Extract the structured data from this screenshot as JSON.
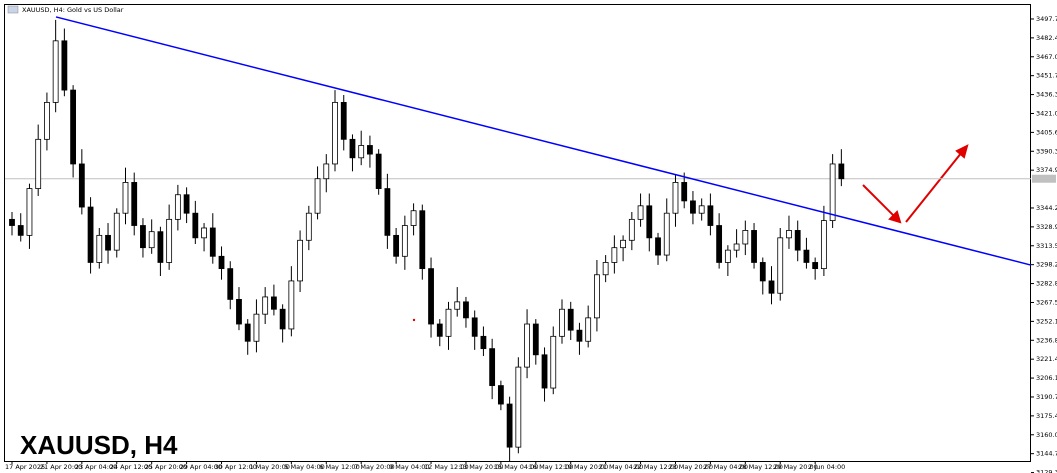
{
  "chart_data": {
    "type": "candlestick",
    "title": "XAUUSD, H4: Gold vs US Dollar",
    "watermark": "XAUUSD, H4",
    "categories": [
      "17 Apr 2025",
      null,
      null,
      null,
      "21 Apr 20:00",
      null,
      null,
      null,
      "23 Apr 04:00",
      null,
      null,
      null,
      "24 Apr 12:00",
      null,
      null,
      null,
      "25 Apr 20:00",
      null,
      null,
      null,
      "29 Apr 04:00",
      null,
      null,
      null,
      "30 Apr 12:00",
      null,
      null,
      null,
      "1 May 20:00",
      null,
      null,
      null,
      "5 May 04:00",
      null,
      null,
      null,
      "6 May 12:00",
      null,
      null,
      null,
      "7 May 20:00",
      null,
      null,
      null,
      "9 May 04:00",
      null,
      null,
      null,
      "12 May 12:00",
      null,
      null,
      null,
      "13 May 20:00",
      null,
      null,
      null,
      "15 May 04:00",
      null,
      null,
      null,
      "16 May 12:00",
      null,
      null,
      null,
      "19 May 20:00",
      null,
      null,
      null,
      "21 May 04:00",
      null,
      null,
      null,
      "22 May 12:00",
      null,
      null,
      null,
      "23 May 20:00",
      null,
      null,
      null,
      "27 May 04:00",
      null,
      null,
      null,
      "28 May 12:00",
      null,
      null,
      null,
      "29 May 20:00",
      null,
      null,
      null,
      "2 Jun 04:00",
      null,
      null,
      null
    ],
    "ohlc": [
      [
        3335,
        3341,
        3322,
        3330
      ],
      [
        3330,
        3340,
        3317,
        3322
      ],
      [
        3322,
        3364,
        3311,
        3360
      ],
      [
        3360,
        3412,
        3354,
        3400
      ],
      [
        3400,
        3438,
        3391,
        3430
      ],
      [
        3430,
        3497,
        3422,
        3480
      ],
      [
        3480,
        3490,
        3435,
        3440
      ],
      [
        3440,
        3444,
        3369,
        3380
      ],
      [
        3380,
        3392,
        3339,
        3345
      ],
      [
        3345,
        3353,
        3291,
        3300
      ],
      [
        3300,
        3328,
        3295,
        3322
      ],
      [
        3322,
        3332,
        3299,
        3310
      ],
      [
        3310,
        3344,
        3304,
        3340
      ],
      [
        3340,
        3377,
        3331,
        3365
      ],
      [
        3365,
        3373,
        3322,
        3330
      ],
      [
        3330,
        3336,
        3304,
        3312
      ],
      [
        3312,
        3335,
        3307,
        3325
      ],
      [
        3325,
        3329,
        3289,
        3300
      ],
      [
        3300,
        3347,
        3294,
        3335
      ],
      [
        3335,
        3363,
        3326,
        3355
      ],
      [
        3355,
        3361,
        3332,
        3340
      ],
      [
        3340,
        3350,
        3315,
        3320
      ],
      [
        3320,
        3332,
        3309,
        3328
      ],
      [
        3328,
        3340,
        3299,
        3305
      ],
      [
        3305,
        3313,
        3286,
        3295
      ],
      [
        3295,
        3301,
        3262,
        3270
      ],
      [
        3270,
        3280,
        3245,
        3250
      ],
      [
        3250,
        3254,
        3225,
        3236
      ],
      [
        3236,
        3270,
        3227,
        3258
      ],
      [
        3258,
        3280,
        3250,
        3272
      ],
      [
        3272,
        3282,
        3257,
        3262
      ],
      [
        3262,
        3266,
        3235,
        3246
      ],
      [
        3246,
        3297,
        3240,
        3285
      ],
      [
        3285,
        3326,
        3276,
        3318
      ],
      [
        3318,
        3346,
        3310,
        3340
      ],
      [
        3340,
        3378,
        3335,
        3368
      ],
      [
        3368,
        3388,
        3357,
        3380
      ],
      [
        3380,
        3440,
        3374,
        3430
      ],
      [
        3430,
        3436,
        3391,
        3400
      ],
      [
        3400,
        3404,
        3374,
        3385
      ],
      [
        3385,
        3407,
        3379,
        3395
      ],
      [
        3395,
        3403,
        3377,
        3388
      ],
      [
        3388,
        3392,
        3355,
        3360
      ],
      [
        3360,
        3372,
        3311,
        3322
      ],
      [
        3322,
        3328,
        3299,
        3305
      ],
      [
        3305,
        3338,
        3294,
        3330
      ],
      [
        3330,
        3348,
        3322,
        3342
      ],
      [
        3342,
        3347,
        3286,
        3295
      ],
      [
        3295,
        3304,
        3239,
        3250
      ],
      [
        3250,
        3254,
        3232,
        3240
      ],
      [
        3240,
        3268,
        3229,
        3262
      ],
      [
        3262,
        3280,
        3256,
        3268
      ],
      [
        3268,
        3272,
        3247,
        3255
      ],
      [
        3255,
        3261,
        3229,
        3240
      ],
      [
        3240,
        3248,
        3224,
        3230
      ],
      [
        3230,
        3238,
        3189,
        3200
      ],
      [
        3200,
        3204,
        3180,
        3185
      ],
      [
        3185,
        3191,
        3135,
        3150
      ],
      [
        3150,
        3223,
        3145,
        3215
      ],
      [
        3215,
        3262,
        3206,
        3250
      ],
      [
        3250,
        3254,
        3217,
        3225
      ],
      [
        3225,
        3231,
        3187,
        3198
      ],
      [
        3198,
        3248,
        3193,
        3240
      ],
      [
        3240,
        3270,
        3234,
        3262
      ],
      [
        3262,
        3268,
        3237,
        3245
      ],
      [
        3245,
        3251,
        3225,
        3236
      ],
      [
        3236,
        3265,
        3231,
        3255
      ],
      [
        3255,
        3302,
        3244,
        3290
      ],
      [
        3290,
        3306,
        3284,
        3300
      ],
      [
        3300,
        3322,
        3291,
        3312
      ],
      [
        3312,
        3322,
        3301,
        3318
      ],
      [
        3318,
        3341,
        3310,
        3335
      ],
      [
        3335,
        3356,
        3329,
        3346
      ],
      [
        3346,
        3356,
        3309,
        3320
      ],
      [
        3320,
        3324,
        3298,
        3306
      ],
      [
        3306,
        3352,
        3301,
        3340
      ],
      [
        3340,
        3371,
        3329,
        3365
      ],
      [
        3365,
        3373,
        3344,
        3350
      ],
      [
        3350,
        3358,
        3331,
        3340
      ],
      [
        3340,
        3352,
        3334,
        3346
      ],
      [
        3346,
        3356,
        3322,
        3330
      ],
      [
        3330,
        3340,
        3295,
        3300
      ],
      [
        3300,
        3314,
        3289,
        3310
      ],
      [
        3310,
        3327,
        3304,
        3315
      ],
      [
        3315,
        3334,
        3306,
        3326
      ],
      [
        3326,
        3332,
        3295,
        3300
      ],
      [
        3300,
        3304,
        3274,
        3285
      ],
      [
        3285,
        3297,
        3266,
        3275
      ],
      [
        3275,
        3328,
        3269,
        3320
      ],
      [
        3320,
        3338,
        3311,
        3326
      ],
      [
        3326,
        3334,
        3301,
        3310
      ],
      [
        3310,
        3320,
        3295,
        3300
      ],
      [
        3300,
        3304,
        3286,
        3295
      ],
      [
        3295,
        3346,
        3289,
        3334
      ],
      [
        3334,
        3388,
        3328,
        3380
      ],
      [
        3380,
        3392,
        3362,
        3368
      ]
    ],
    "up_color": "#ffffff",
    "down_color": "#000000",
    "outline_color": "#000000",
    "trendline": {
      "color": "#0000ff",
      "points": [
        [
          5.04,
          3499.4
        ],
        [
          116.7,
          3297.9
        ]
      ]
    },
    "ylim": [
      3129,
      3509.1
    ],
    "yticks": [
      3129.35,
      {
        "value": 3144.7,
        "label": "3144.70"
      },
      3160.05,
      {
        "value": 3175.4,
        "label": "3175.40"
      },
      3190.75,
      {
        "value": 3206.1,
        "label": "3206.10"
      },
      3221.45,
      {
        "value": 3236.8,
        "label": "3236.80"
      },
      3252.15,
      {
        "value": 3267.5,
        "label": "3267.50"
      },
      3282.85,
      {
        "value": 3298.2,
        "label": "3298.20"
      },
      3313.55,
      {
        "value": 3328.9,
        "label": "3328.90"
      },
      3344.25,
      3374.95,
      {
        "value": 3390.3,
        "label": "3390.30"
      },
      3405.65,
      {
        "value": 3421,
        "label": "3421.00"
      },
      3436.35,
      {
        "value": 3451.7,
        "label": "3451.70"
      },
      3467.05,
      {
        "value": 3482.4,
        "label": "3482.40"
      },
      3497.75
    ],
    "grid": false
  }
}
